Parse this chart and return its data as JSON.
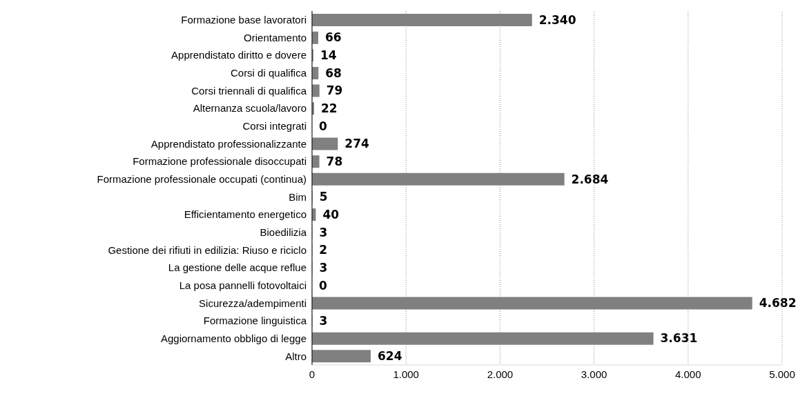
{
  "chart_data": {
    "type": "bar",
    "orientation": "horizontal",
    "categories": [
      "Formazione base lavoratori",
      "Orientamento",
      "Apprendistato diritto e dovere",
      "Corsi di qualifica",
      "Corsi triennali di qualifica",
      "Alternanza scuola/lavoro",
      "Corsi integrati",
      "Apprendistato professionalizzante",
      "Formazione professionale disoccupati",
      "Formazione professionale occupati (continua)",
      "Bim",
      "Efficientamento energetico",
      "Bioedilizia",
      "Gestione dei rifiuti in edilizia: Riuso e riciclo",
      "La gestione delle acque reflue",
      "La posa pannelli fotovoltaici",
      "Sicurezza/adempimenti",
      "Formazione linguistica",
      "Aggiornamento obbligo di legge",
      "Altro"
    ],
    "values": [
      2340,
      66,
      14,
      68,
      79,
      22,
      0,
      274,
      78,
      2684,
      5,
      40,
      3,
      2,
      3,
      0,
      4682,
      3,
      3631,
      624
    ],
    "value_labels": [
      "2.340",
      "66",
      "14",
      "68",
      "79",
      "22",
      "0",
      "274",
      "78",
      "2.684",
      "5",
      "40",
      "3",
      "2",
      "3",
      "0",
      "4.682",
      "3",
      "3.631",
      "624"
    ],
    "color": "#808080",
    "xlim": [
      0,
      5000
    ],
    "xticks": [
      0,
      {
        "value": 1000,
        "label": "1.000"
      },
      {
        "value": 2000,
        "label": "2.000"
      },
      {
        "value": 3000,
        "label": "3.000"
      },
      {
        "value": 4000,
        "label": "4.000"
      },
      {
        "value": 5000,
        "label": "5.000"
      }
    ],
    "grid": "x"
  }
}
